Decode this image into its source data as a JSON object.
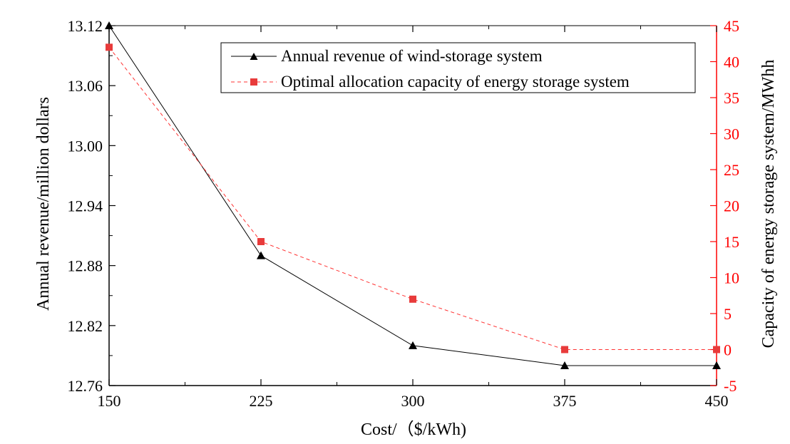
{
  "chart_data": {
    "type": "line",
    "xlabel": "Cost/（$/kWh)",
    "ylabel_left": "Annual revenue/million dollars",
    "ylabel_right": "Capacity of energy storage system/MWhh",
    "x": [
      150,
      225,
      300,
      375,
      450
    ],
    "x_ticks": [
      "150",
      "225",
      "300",
      "375",
      "450"
    ],
    "xlim": [
      150,
      450
    ],
    "ylim_left": [
      12.76,
      13.12
    ],
    "y_ticks_left": [
      "12.76",
      "12.82",
      "12.88",
      "12.94",
      "13.00",
      "13.06",
      "13.12"
    ],
    "ylim_right": [
      -5,
      45
    ],
    "y_ticks_right": [
      "-5",
      "0",
      "5",
      "10",
      "15",
      "20",
      "25",
      "30",
      "35",
      "40",
      "45"
    ],
    "series": [
      {
        "name": "Annual revenue of wind-storage system",
        "axis": "left",
        "values": [
          13.12,
          12.89,
          12.8,
          12.78,
          12.78
        ],
        "color": "#000000",
        "marker": "triangle",
        "line": "solid"
      },
      {
        "name": "Optimal allocation capacity of energy storage system",
        "axis": "right",
        "values": [
          42,
          15,
          7,
          0,
          0
        ],
        "color": "#ff0000",
        "marker": "square",
        "line": "dashed"
      }
    ],
    "legend": "top-right",
    "grid": false
  }
}
